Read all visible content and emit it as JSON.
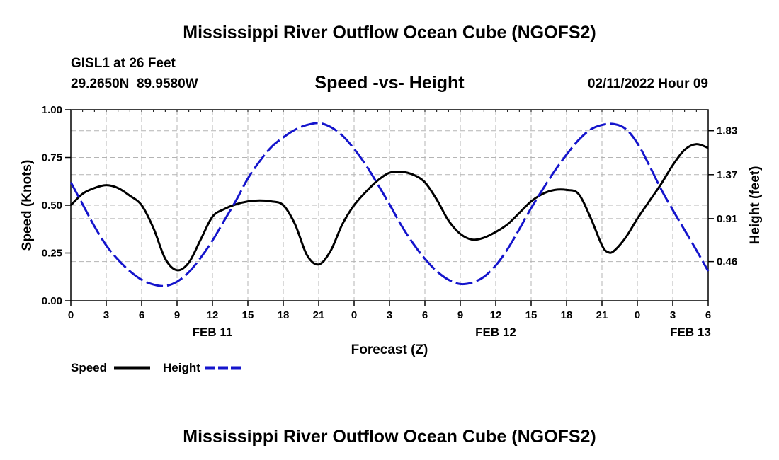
{
  "header": {
    "title": "Mississippi River Outflow Ocean Cube (NGOFS2)",
    "station_line": "GISL1 at 26 Feet",
    "coords_line": "29.2650N  89.9580W",
    "subtitle": "Speed -vs- Height",
    "timestamp": "02/11/2022 Hour 09"
  },
  "footer": {
    "title": "Mississippi River Outflow Ocean Cube (NGOFS2)"
  },
  "colors": {
    "speed": "#000000",
    "height": "#1414cc",
    "grid": "#b4b4b4"
  },
  "chart_data": {
    "type": "line",
    "title": "Speed -vs- Height",
    "xlabel": "Forecast (Z)",
    "ylabel": "Speed (Knots)",
    "y2label": "Height (feet)",
    "x_range_hours": [
      0,
      54
    ],
    "x_ticks": [
      {
        "hour": 0,
        "label": "0"
      },
      {
        "hour": 3,
        "label": "3"
      },
      {
        "hour": 6,
        "label": "6"
      },
      {
        "hour": 9,
        "label": "9"
      },
      {
        "hour": 12,
        "label": "12"
      },
      {
        "hour": 15,
        "label": "15"
      },
      {
        "hour": 18,
        "label": "18"
      },
      {
        "hour": 21,
        "label": "21"
      },
      {
        "hour": 24,
        "label": "0"
      },
      {
        "hour": 27,
        "label": "3"
      },
      {
        "hour": 30,
        "label": "6"
      },
      {
        "hour": 33,
        "label": "9"
      },
      {
        "hour": 36,
        "label": "12"
      },
      {
        "hour": 39,
        "label": "15"
      },
      {
        "hour": 42,
        "label": "18"
      },
      {
        "hour": 45,
        "label": "21"
      },
      {
        "hour": 48,
        "label": "0"
      },
      {
        "hour": 51,
        "label": "3"
      },
      {
        "hour": 54,
        "label": "6"
      }
    ],
    "date_labels": [
      {
        "hour": 12,
        "label": "FEB 11"
      },
      {
        "hour": 36,
        "label": "FEB 12"
      },
      {
        "hour": 52.5,
        "label": "FEB 13"
      }
    ],
    "ylim": [
      0,
      1
    ],
    "y_ticks": [
      {
        "value": 0,
        "label": "0.00"
      },
      {
        "value": 0.25,
        "label": "0.25"
      },
      {
        "value": 0.5,
        "label": "0.50"
      },
      {
        "value": 0.75,
        "label": "0.75"
      },
      {
        "value": 1,
        "label": "1.00"
      }
    ],
    "y2lim": [
      0.05,
      2.05
    ],
    "y2_ticks": [
      {
        "value": 0.46,
        "label": "0.46"
      },
      {
        "value": 0.91,
        "label": "0.91"
      },
      {
        "value": 1.37,
        "label": "1.37"
      },
      {
        "value": 1.83,
        "label": "1.83"
      }
    ],
    "series": [
      {
        "name": "Speed",
        "axis": "left",
        "style": "solid",
        "points": [
          [
            0,
            0.5
          ],
          [
            1,
            0.56
          ],
          [
            2,
            0.59
          ],
          [
            3,
            0.605
          ],
          [
            4,
            0.59
          ],
          [
            5,
            0.55
          ],
          [
            6,
            0.5
          ],
          [
            7,
            0.38
          ],
          [
            8,
            0.22
          ],
          [
            9,
            0.16
          ],
          [
            10,
            0.2
          ],
          [
            11,
            0.32
          ],
          [
            12,
            0.44
          ],
          [
            13,
            0.48
          ],
          [
            14,
            0.505
          ],
          [
            15,
            0.52
          ],
          [
            16,
            0.525
          ],
          [
            17,
            0.52
          ],
          [
            18,
            0.5
          ],
          [
            19,
            0.4
          ],
          [
            20,
            0.24
          ],
          [
            21,
            0.19
          ],
          [
            22,
            0.26
          ],
          [
            23,
            0.4
          ],
          [
            24,
            0.5
          ],
          [
            25,
            0.57
          ],
          [
            26,
            0.63
          ],
          [
            27,
            0.67
          ],
          [
            28,
            0.675
          ],
          [
            29,
            0.66
          ],
          [
            30,
            0.62
          ],
          [
            31,
            0.53
          ],
          [
            32,
            0.42
          ],
          [
            33,
            0.35
          ],
          [
            34,
            0.32
          ],
          [
            35,
            0.33
          ],
          [
            36,
            0.36
          ],
          [
            37,
            0.4
          ],
          [
            38,
            0.46
          ],
          [
            39,
            0.52
          ],
          [
            40,
            0.56
          ],
          [
            41,
            0.58
          ],
          [
            42,
            0.58
          ],
          [
            43,
            0.56
          ],
          [
            44,
            0.44
          ],
          [
            45,
            0.29
          ],
          [
            45.5,
            0.255
          ],
          [
            46,
            0.26
          ],
          [
            47,
            0.33
          ],
          [
            48,
            0.43
          ],
          [
            49,
            0.52
          ],
          [
            50,
            0.61
          ],
          [
            51,
            0.71
          ],
          [
            52,
            0.79
          ],
          [
            53,
            0.82
          ],
          [
            54,
            0.8
          ]
        ]
      },
      {
        "name": "Height",
        "axis": "right",
        "style": "dashed",
        "points": [
          [
            0,
            1.29
          ],
          [
            1,
            1.06
          ],
          [
            2,
            0.83
          ],
          [
            3,
            0.63
          ],
          [
            4,
            0.48
          ],
          [
            5,
            0.36
          ],
          [
            6,
            0.27
          ],
          [
            7,
            0.22
          ],
          [
            8,
            0.205
          ],
          [
            9,
            0.25
          ],
          [
            10,
            0.35
          ],
          [
            11,
            0.5
          ],
          [
            12,
            0.68
          ],
          [
            13,
            0.89
          ],
          [
            14,
            1.1
          ],
          [
            15,
            1.33
          ],
          [
            16,
            1.51
          ],
          [
            17,
            1.66
          ],
          [
            18,
            1.76
          ],
          [
            19,
            1.84
          ],
          [
            20,
            1.89
          ],
          [
            21,
            1.91
          ],
          [
            22,
            1.87
          ],
          [
            23,
            1.78
          ],
          [
            24,
            1.64
          ],
          [
            25,
            1.47
          ],
          [
            26,
            1.27
          ],
          [
            27,
            1.06
          ],
          [
            28,
            0.84
          ],
          [
            29,
            0.65
          ],
          [
            30,
            0.49
          ],
          [
            31,
            0.36
          ],
          [
            32,
            0.27
          ],
          [
            33,
            0.225
          ],
          [
            34,
            0.24
          ],
          [
            35,
            0.3
          ],
          [
            36,
            0.42
          ],
          [
            37,
            0.59
          ],
          [
            38,
            0.8
          ],
          [
            39,
            1.02
          ],
          [
            40,
            1.22
          ],
          [
            41,
            1.41
          ],
          [
            42,
            1.58
          ],
          [
            43,
            1.73
          ],
          [
            44,
            1.84
          ],
          [
            45,
            1.89
          ],
          [
            46,
            1.9
          ],
          [
            47,
            1.85
          ],
          [
            48,
            1.7
          ],
          [
            49,
            1.47
          ],
          [
            50,
            1.22
          ],
          [
            51,
            1.0
          ],
          [
            52,
            0.79
          ],
          [
            53,
            0.58
          ],
          [
            54,
            0.36
          ]
        ]
      }
    ],
    "legend": {
      "position": "bottom-left",
      "entries": [
        {
          "label": "Speed",
          "style": "solid"
        },
        {
          "label": "Height",
          "style": "dashed"
        }
      ]
    }
  }
}
